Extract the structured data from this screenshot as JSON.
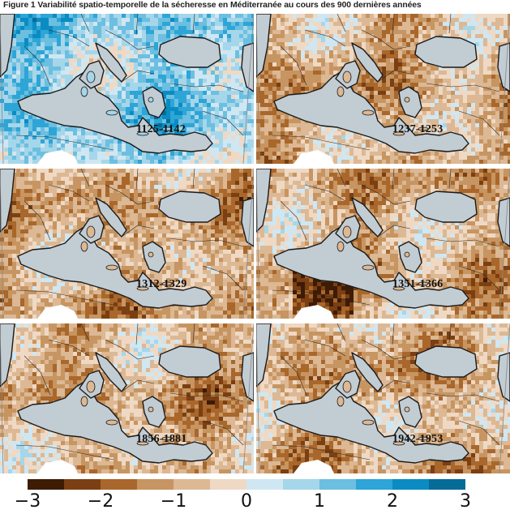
{
  "figure": {
    "title": "Figure 1 Variabilité spatio-temporelle de la sécheresse en Méditerranée au cours des 900 dernières années"
  },
  "panels": [
    {
      "period": "1125-1142",
      "tendency": "wet",
      "dominant_sign": 1
    },
    {
      "period": "1237-1253",
      "tendency": "dry",
      "dominant_sign": -1
    },
    {
      "period": "1312-1329",
      "tendency": "dry",
      "dominant_sign": -1
    },
    {
      "period": "1351-1366",
      "tendency": "dry",
      "dominant_sign": -1
    },
    {
      "period": "1856-1881",
      "tendency": "dry",
      "dominant_sign": -1
    },
    {
      "period": "1942-1953",
      "tendency": "dry",
      "dominant_sign": -1
    }
  ],
  "colorbar": {
    "ticks": [
      "−3",
      "−2",
      "−1",
      "0",
      "1",
      "2",
      "3"
    ],
    "range": [
      -3,
      3
    ],
    "colors": [
      "#3d1b05",
      "#7a3f12",
      "#a9672c",
      "#c79561",
      "#dcb894",
      "#efd9c4",
      "#cfe7f2",
      "#a6d6ea",
      "#6cbfe0",
      "#2da5d6",
      "#0a8cc2",
      "#066b96"
    ]
  },
  "map_colors": {
    "sea": "#c2ccd3",
    "no_data": "#ffffff",
    "coast": "#1a1a1a"
  }
}
